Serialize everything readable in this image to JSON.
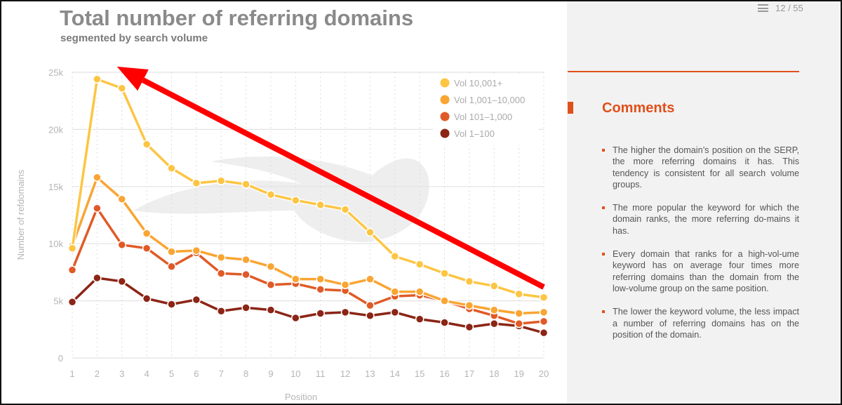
{
  "header": {
    "title": "Total number of referring domains",
    "subtitle": "segmented by search volume",
    "page_indicator": "12 / 55",
    "menu_icon": "hamburger-icon"
  },
  "comments": {
    "title": "Comments",
    "items": [
      "The higher the domain’s position on the SERP, the more referring domains it has. This tendency is consistent for all search volume groups.",
      "The more popular the keyword for which the domain ranks, the more referring do-mains it has.",
      "Every domain that ranks for a high-vol-ume keyword has on average four times more referring domains than the domain from the low-volume group on the same position.",
      "The lower the keyword volume, the less impact a number of referring domains has on the position of the domain."
    ],
    "accent_color": "#e0501a"
  },
  "chart_data": {
    "type": "line",
    "title": "Total number of referring domains",
    "subtitle": "segmented by search volume",
    "xlabel": "Position",
    "ylabel": "Number of refdomains",
    "x": [
      1,
      2,
      3,
      4,
      5,
      6,
      7,
      8,
      9,
      10,
      11,
      12,
      13,
      14,
      15,
      16,
      17,
      18,
      19,
      20
    ],
    "x_tick_labels": [
      "1",
      "2",
      "3",
      "4",
      "5",
      "6",
      "7",
      "8",
      "9",
      "10",
      "11",
      "12",
      "13",
      "14",
      "15",
      "16",
      "17",
      "18",
      "19",
      "20"
    ],
    "ylim": [
      0,
      25000
    ],
    "y_ticks": [
      0,
      5000,
      10000,
      15000,
      20000,
      25000
    ],
    "y_tick_labels": [
      "0",
      "5k",
      "10k",
      "15k",
      "20k",
      "25k"
    ],
    "grid": true,
    "legend_position": "top-right",
    "series": [
      {
        "name": "Vol 10,001+",
        "color": "#fdc543",
        "values": [
          9600,
          24400,
          23600,
          18700,
          16600,
          15300,
          15500,
          15200,
          14300,
          13800,
          13400,
          13000,
          11000,
          8900,
          8200,
          7400,
          6700,
          6300,
          5600,
          5300
        ]
      },
      {
        "name": "Vol 1,001–10,000",
        "color": "#f9a533",
        "values": [
          9800,
          15800,
          13900,
          10900,
          9300,
          9400,
          8800,
          8600,
          8000,
          6900,
          6900,
          6400,
          6900,
          5800,
          5800,
          5000,
          4600,
          4200,
          3900,
          4000
        ]
      },
      {
        "name": "Vol 101–1,000",
        "color": "#e05a27",
        "values": [
          7700,
          13100,
          9900,
          9600,
          8000,
          9200,
          7400,
          7300,
          6400,
          6500,
          6000,
          5900,
          4600,
          5400,
          5500,
          5000,
          4300,
          3700,
          3000,
          3200
        ]
      },
      {
        "name": "Vol 1–100",
        "color": "#8b2516",
        "values": [
          4900,
          7000,
          6700,
          5200,
          4700,
          5100,
          4100,
          4400,
          4200,
          3500,
          3900,
          4000,
          3700,
          4000,
          3400,
          3100,
          2700,
          3000,
          2800,
          2200
        ]
      }
    ],
    "annotation": {
      "type": "arrow",
      "color": "#ff0000",
      "from_x": 20,
      "from_y": 6200,
      "to_x": 2.8,
      "to_y": 25500
    }
  }
}
